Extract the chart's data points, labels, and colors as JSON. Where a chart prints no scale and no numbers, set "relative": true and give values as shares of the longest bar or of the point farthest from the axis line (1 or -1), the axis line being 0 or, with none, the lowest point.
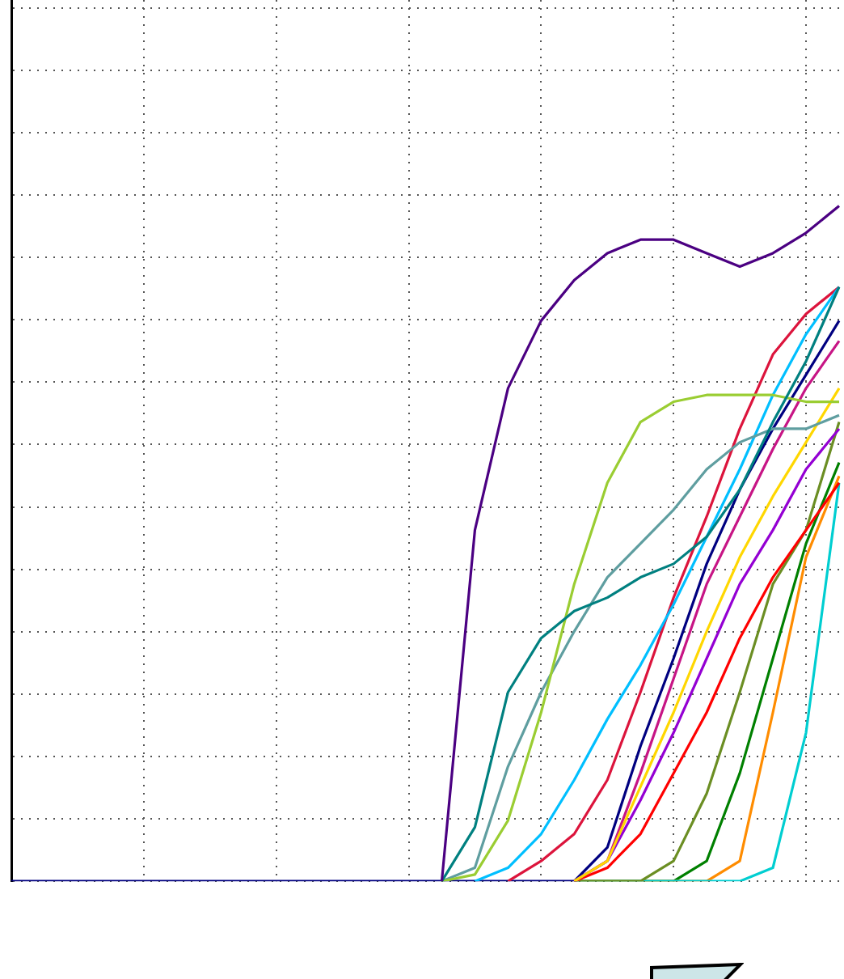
{
  "chart_data": {
    "type": "line",
    "relative": true,
    "grid": true,
    "legend": false,
    "marker": "none",
    "line_style": "solid",
    "categories": [
      null,
      null,
      null,
      null,
      null,
      null,
      null,
      null,
      null,
      null,
      null,
      null,
      null,
      null,
      null,
      null,
      null,
      null,
      null,
      null,
      null,
      null,
      null,
      null,
      null,
      null
    ],
    "series": [
      {
        "color": "#4b0082",
        "values": [
          null,
          null,
          null,
          null,
          null,
          null,
          null,
          null,
          null,
          null,
          null,
          null,
          null,
          0,
          0.52,
          0.73,
          0.83,
          0.89,
          0.93,
          0.95,
          0.95,
          0.93,
          0.91,
          0.93,
          0.96,
          1
        ]
      },
      {
        "color": "#008080",
        "values": [
          null,
          null,
          null,
          null,
          null,
          null,
          null,
          null,
          null,
          null,
          null,
          null,
          null,
          0,
          0.08,
          0.28,
          0.36,
          0.4,
          0.42,
          0.45,
          0.47,
          0.51,
          0.58,
          0.68,
          0.77,
          0.88
        ]
      },
      {
        "color": "#9acd32",
        "values": [
          null,
          null,
          null,
          null,
          null,
          null,
          null,
          null,
          null,
          null,
          null,
          null,
          null,
          0,
          0.01,
          0.09,
          0.25,
          0.44,
          0.59,
          0.68,
          0.71,
          0.72,
          0.72,
          0.72,
          0.71,
          0.71
        ]
      },
      {
        "color": "#5f9ea0",
        "values": [
          null,
          null,
          null,
          null,
          null,
          null,
          null,
          null,
          null,
          null,
          null,
          null,
          null,
          0,
          0.02,
          0.17,
          0.28,
          0.37,
          0.45,
          0.5,
          0.55,
          0.61,
          0.65,
          0.67,
          0.67,
          0.69
        ]
      },
      {
        "color": "#00bfff",
        "values": [
          null,
          null,
          null,
          null,
          null,
          null,
          null,
          null,
          null,
          null,
          null,
          null,
          null,
          null,
          0,
          0.02,
          0.07,
          0.15,
          0.24,
          0.32,
          0.41,
          0.51,
          0.61,
          0.72,
          0.81,
          0.88
        ]
      },
      {
        "color": "#dc143c",
        "values": [
          null,
          null,
          null,
          null,
          null,
          null,
          null,
          null,
          null,
          null,
          null,
          null,
          null,
          null,
          null,
          0,
          0.03,
          0.07,
          0.15,
          0.28,
          0.42,
          0.54,
          0.67,
          0.78,
          0.84,
          0.88
        ]
      },
      {
        "color": "#ffd700",
        "values": [
          null,
          null,
          null,
          null,
          null,
          null,
          null,
          null,
          null,
          null,
          null,
          null,
          null,
          null,
          null,
          null,
          null,
          0,
          0.03,
          0.14,
          0.25,
          0.37,
          0.48,
          0.57,
          0.65,
          0.73
        ]
      },
      {
        "color": "#9400d3",
        "values": [
          null,
          null,
          null,
          null,
          null,
          null,
          null,
          null,
          null,
          null,
          null,
          null,
          null,
          null,
          null,
          null,
          null,
          0,
          0.03,
          0.12,
          0.22,
          0.33,
          0.44,
          0.52,
          0.61,
          0.67
        ]
      },
      {
        "color": "#ff0000",
        "values": [
          null,
          null,
          null,
          null,
          null,
          null,
          null,
          null,
          null,
          null,
          null,
          null,
          null,
          null,
          null,
          null,
          null,
          0,
          0.02,
          0.07,
          0.16,
          0.25,
          0.36,
          0.45,
          0.52,
          0.59
        ]
      },
      {
        "color": "#6b8e23",
        "values": [
          null,
          null,
          null,
          null,
          null,
          null,
          null,
          null,
          null,
          null,
          null,
          null,
          null,
          null,
          null,
          null,
          null,
          0,
          0,
          0,
          0.03,
          0.13,
          0.28,
          0.44,
          0.52,
          0.68
        ]
      },
      {
        "color": "#00ced1",
        "values": [
          null,
          null,
          null,
          null,
          null,
          null,
          null,
          null,
          null,
          null,
          null,
          null,
          null,
          null,
          null,
          null,
          null,
          0,
          0,
          0,
          0,
          0,
          0,
          0.02,
          0.22,
          0.59
        ]
      },
      {
        "color": "#ff8c00",
        "values": [
          null,
          null,
          null,
          null,
          null,
          null,
          null,
          null,
          null,
          null,
          null,
          null,
          null,
          null,
          null,
          null,
          null,
          0,
          0,
          0,
          0,
          0,
          0.03,
          0.25,
          0.48,
          0.6
        ]
      },
      {
        "color": "#008000",
        "values": [
          null,
          null,
          null,
          null,
          null,
          null,
          null,
          null,
          null,
          null,
          null,
          null,
          null,
          null,
          null,
          null,
          null,
          0,
          0,
          0,
          0,
          0.03,
          0.16,
          0.33,
          0.5,
          0.62
        ]
      },
      {
        "color": "#c71585",
        "values": [
          null,
          null,
          null,
          null,
          null,
          null,
          null,
          null,
          null,
          null,
          null,
          null,
          null,
          null,
          null,
          null,
          null,
          0,
          0.03,
          0.16,
          0.3,
          0.44,
          0.54,
          0.64,
          0.73,
          0.8
        ]
      },
      {
        "color": "#000080",
        "values": [
          0,
          0,
          0,
          0,
          0,
          0,
          0,
          0,
          0,
          0,
          0,
          0,
          0,
          0,
          0,
          0,
          0,
          0,
          0.05,
          0.2,
          0.33,
          0.47,
          0.58,
          0.67,
          0.75,
          0.83
        ]
      }
    ]
  }
}
